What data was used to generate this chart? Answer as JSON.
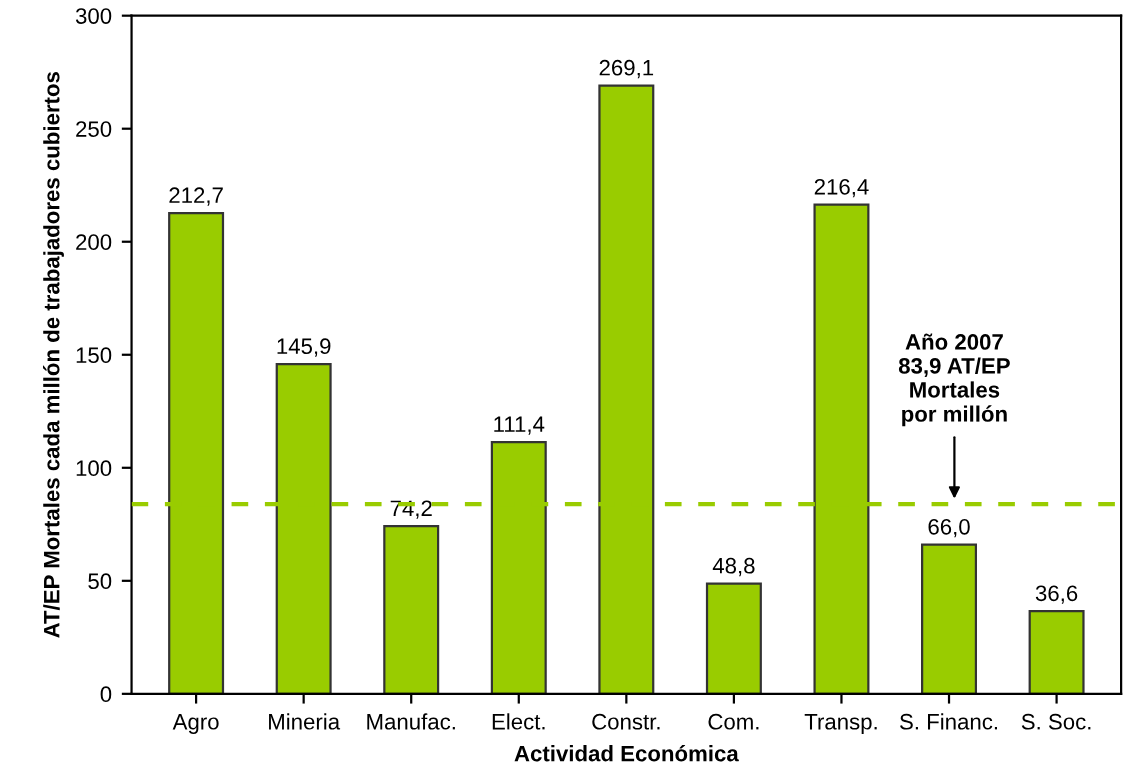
{
  "chart_data": {
    "type": "bar",
    "xlabel": "Actividad Económica",
    "ylabel": "AT/EP Mortales cada millón de trabajadores cubiertos",
    "categories": [
      "Agro",
      "Mineria",
      "Manufac.",
      "Elect.",
      "Constr.",
      "Com.",
      "Transp.",
      "S. Financ.",
      "S. Soc."
    ],
    "values": [
      212.7,
      145.9,
      74.2,
      111.4,
      269.1,
      48.8,
      216.4,
      66.0,
      36.6
    ],
    "value_labels": [
      "212,7",
      "145,9",
      "74,2",
      "111,4",
      "269,1",
      "48,8",
      "216,4",
      "66,0",
      "36,6"
    ],
    "color": "#99cc00",
    "ylim": [
      0,
      300
    ],
    "yticks": [
      0,
      50,
      100,
      150,
      200,
      250,
      300
    ],
    "grid": false,
    "ref_lines": [
      {
        "axis": "y",
        "value": 83.9,
        "label": "Año 2007\n83,9 AT/EP\nMortales\npor millón",
        "color": "#99cc00",
        "line_style": "dashed"
      }
    ]
  }
}
